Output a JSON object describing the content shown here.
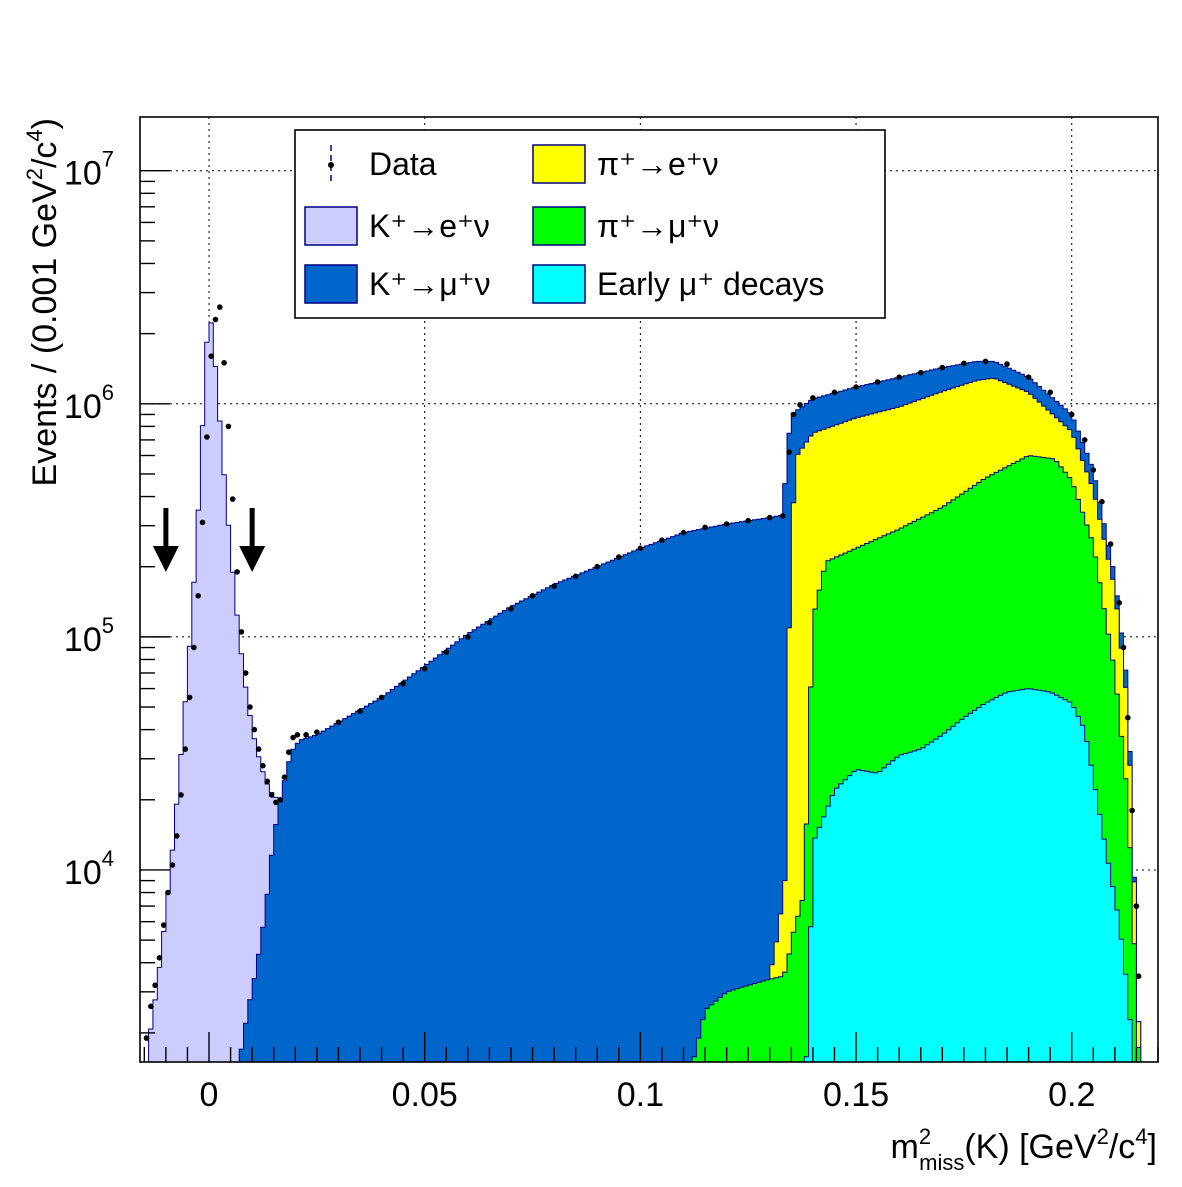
{
  "chart_data": {
    "type": "area",
    "xlabel": {
      "base": "m",
      "sup": "2",
      "sub": "miss",
      "rest": "(K) [GeV",
      "unit_sup": "2",
      "unit_mid": "/c",
      "unit_sup2": "4",
      "unit_end": "]"
    },
    "ylabel": {
      "a": "Events / (0.001 GeV",
      "sup1": "2",
      "b": "/c",
      "sup2": "4",
      "c": ")"
    },
    "xlim": [
      -0.016,
      0.22
    ],
    "ylim": [
      1500,
      17000000
    ],
    "log_y": true,
    "grid": true,
    "legend_position": "top-left",
    "x_ticks": [
      {
        "value": 0,
        "label": "0"
      },
      {
        "value": 0.05,
        "label": "0.05"
      },
      {
        "value": 0.1,
        "label": "0.1"
      },
      {
        "value": 0.15,
        "label": "0.15"
      },
      {
        "value": 0.2,
        "label": "0.2"
      }
    ],
    "y_ticks": [
      {
        "value": 10000,
        "base": "10",
        "exp": "4"
      },
      {
        "value": 100000,
        "base": "10",
        "exp": "5"
      },
      {
        "value": 1000000,
        "base": "10",
        "exp": "6"
      },
      {
        "value": 10000000,
        "base": "10",
        "exp": "7"
      }
    ],
    "arrows": [
      -0.01,
      0.01
    ],
    "legend": [
      {
        "id": "data",
        "label": "Data",
        "kind": "marker"
      },
      {
        "id": "pi_enu",
        "label": "π⁺→e⁺ν",
        "color": "#ffff00"
      },
      {
        "id": "k_enu",
        "label": "K⁺→e⁺ν",
        "color": "#ccccff"
      },
      {
        "id": "pi_munu",
        "label": "π⁺→μ⁺ν",
        "color": "#00ff00"
      },
      {
        "id": "k_munu",
        "label": "K⁺→μ⁺ν",
        "color": "#0066cc"
      },
      {
        "id": "early_mu",
        "label": "Early μ⁺ decays",
        "color": "#00ffff"
      }
    ],
    "series": [
      {
        "id": "k_enu",
        "color": "#ccccff",
        "points": [
          [
            -0.016,
            800
          ],
          [
            -0.014,
            1800
          ],
          [
            -0.012,
            3200
          ],
          [
            -0.01,
            6500
          ],
          [
            -0.008,
            15000
          ],
          [
            -0.006,
            40000
          ],
          [
            -0.004,
            120000
          ],
          [
            -0.002,
            500000
          ],
          [
            -0.001,
            1300000
          ],
          [
            0,
            2600000
          ],
          [
            0.001,
            1900000
          ],
          [
            0.002,
            1100000
          ],
          [
            0.004,
            380000
          ],
          [
            0.006,
            150000
          ],
          [
            0.008,
            70000
          ],
          [
            0.01,
            40000
          ],
          [
            0.012,
            28000
          ],
          [
            0.014,
            22000
          ],
          [
            0.016,
            20000
          ],
          [
            0.018,
            9000
          ],
          [
            0.02,
            1000
          ]
        ]
      },
      {
        "id": "k_munu",
        "color": "#0066cc",
        "points": [
          [
            0.005,
            500
          ],
          [
            0.007,
            1500
          ],
          [
            0.009,
            2500
          ],
          [
            0.011,
            3800
          ],
          [
            0.013,
            6500
          ],
          [
            0.015,
            14000
          ],
          [
            0.017,
            22000
          ],
          [
            0.019,
            32000
          ],
          [
            0.021,
            36000
          ],
          [
            0.025,
            38000
          ],
          [
            0.03,
            43000
          ],
          [
            0.04,
            55000
          ],
          [
            0.05,
            75000
          ],
          [
            0.06,
            103000
          ],
          [
            0.07,
            135000
          ],
          [
            0.08,
            168000
          ],
          [
            0.09,
            200000
          ],
          [
            0.1,
            240000
          ],
          [
            0.11,
            280000
          ],
          [
            0.12,
            305000
          ],
          [
            0.13,
            325000
          ],
          [
            0.133,
            333000
          ],
          [
            0.134,
            620000
          ],
          [
            0.135,
            900000
          ],
          [
            0.14,
            1050000
          ],
          [
            0.15,
            1180000
          ],
          [
            0.16,
            1300000
          ],
          [
            0.17,
            1430000
          ],
          [
            0.178,
            1520000
          ],
          [
            0.182,
            1520000
          ],
          [
            0.19,
            1300000
          ],
          [
            0.2,
            900000
          ],
          [
            0.205,
            520000
          ],
          [
            0.21,
            180000
          ],
          [
            0.213,
            60000
          ],
          [
            0.215,
            5000
          ],
          [
            0.216,
            1000
          ]
        ]
      },
      {
        "id": "pi_enu",
        "color": "#ffff00",
        "points": [
          [
            0.128,
            1000
          ],
          [
            0.13,
            3500
          ],
          [
            0.132,
            5500
          ],
          [
            0.1335,
            9000
          ],
          [
            0.134,
            50000
          ],
          [
            0.135,
            240000
          ],
          [
            0.136,
            590000
          ],
          [
            0.14,
            750000
          ],
          [
            0.15,
            870000
          ],
          [
            0.16,
            970000
          ],
          [
            0.17,
            1130000
          ],
          [
            0.178,
            1260000
          ],
          [
            0.182,
            1290000
          ],
          [
            0.19,
            1120000
          ],
          [
            0.2,
            760000
          ],
          [
            0.205,
            430000
          ],
          [
            0.21,
            160000
          ],
          [
            0.213,
            50000
          ],
          [
            0.215,
            5000
          ],
          [
            0.216,
            1000
          ]
        ]
      },
      {
        "id": "pi_munu",
        "color": "#00ff00",
        "points": [
          [
            0.11,
            1000
          ],
          [
            0.115,
            2500
          ],
          [
            0.12,
            3000
          ],
          [
            0.125,
            3200
          ],
          [
            0.13,
            3400
          ],
          [
            0.133,
            3500
          ],
          [
            0.134,
            3800
          ],
          [
            0.135,
            5000
          ],
          [
            0.138,
            8000
          ],
          [
            0.14,
            120000
          ],
          [
            0.143,
            210000
          ],
          [
            0.15,
            240000
          ],
          [
            0.16,
            290000
          ],
          [
            0.17,
            360000
          ],
          [
            0.18,
            480000
          ],
          [
            0.19,
            600000
          ],
          [
            0.196,
            580000
          ],
          [
            0.2,
            470000
          ],
          [
            0.205,
            250000
          ],
          [
            0.21,
            70000
          ],
          [
            0.213,
            20000
          ],
          [
            0.215,
            3000
          ],
          [
            0.216,
            1000
          ]
        ]
      },
      {
        "id": "early_mu",
        "color": "#00ffff",
        "points": [
          [
            0.138,
            1000
          ],
          [
            0.139,
            2500
          ],
          [
            0.14,
            13000
          ],
          [
            0.145,
            22000
          ],
          [
            0.15,
            27000
          ],
          [
            0.155,
            26000
          ],
          [
            0.16,
            31000
          ],
          [
            0.165,
            33000
          ],
          [
            0.17,
            38000
          ],
          [
            0.175,
            45000
          ],
          [
            0.18,
            52000
          ],
          [
            0.185,
            58000
          ],
          [
            0.19,
            60000
          ],
          [
            0.195,
            58000
          ],
          [
            0.2,
            52000
          ],
          [
            0.203,
            40000
          ],
          [
            0.205,
            25000
          ],
          [
            0.208,
            12000
          ],
          [
            0.211,
            6000
          ],
          [
            0.213,
            3000
          ],
          [
            0.215,
            1000
          ]
        ]
      }
    ],
    "data_points": [
      [
        -0.0145,
        1900
      ],
      [
        -0.0135,
        2600
      ],
      [
        -0.0125,
        3200
      ],
      [
        -0.0115,
        4200
      ],
      [
        -0.0105,
        5800
      ],
      [
        -0.0095,
        8000
      ],
      [
        -0.0085,
        10500
      ],
      [
        -0.0075,
        14000
      ],
      [
        -0.0065,
        21000
      ],
      [
        -0.0055,
        33000
      ],
      [
        -0.0045,
        55000
      ],
      [
        -0.0035,
        90000
      ],
      [
        -0.0025,
        150000
      ],
      [
        -0.0015,
        310000
      ],
      [
        -0.0005,
        720000
      ],
      [
        0.0005,
        1600000
      ],
      [
        0.0015,
        2300000
      ],
      [
        0.0025,
        2600000
      ],
      [
        0.0035,
        1500000
      ],
      [
        0.0045,
        800000
      ],
      [
        0.0055,
        390000
      ],
      [
        0.0065,
        190000
      ],
      [
        0.0075,
        105000
      ],
      [
        0.0085,
        70000
      ],
      [
        0.0095,
        50000
      ],
      [
        0.0105,
        40000
      ],
      [
        0.0115,
        33000
      ],
      [
        0.0125,
        28000
      ],
      [
        0.0135,
        24000
      ],
      [
        0.0145,
        21000
      ],
      [
        0.0155,
        19500
      ],
      [
        0.0165,
        20000
      ],
      [
        0.0175,
        25000
      ],
      [
        0.0185,
        32000
      ],
      [
        0.0195,
        37000
      ],
      [
        0.0205,
        38000
      ],
      [
        0.0225,
        38000
      ],
      [
        0.025,
        39000
      ],
      [
        0.03,
        43000
      ],
      [
        0.035,
        48000
      ],
      [
        0.04,
        55000
      ],
      [
        0.045,
        63000
      ],
      [
        0.05,
        73000
      ],
      [
        0.055,
        86000
      ],
      [
        0.06,
        100000
      ],
      [
        0.065,
        115000
      ],
      [
        0.07,
        132000
      ],
      [
        0.075,
        150000
      ],
      [
        0.08,
        165000
      ],
      [
        0.085,
        182000
      ],
      [
        0.09,
        200000
      ],
      [
        0.095,
        220000
      ],
      [
        0.1,
        240000
      ],
      [
        0.105,
        260000
      ],
      [
        0.11,
        280000
      ],
      [
        0.115,
        295000
      ],
      [
        0.12,
        305000
      ],
      [
        0.125,
        315000
      ],
      [
        0.13,
        325000
      ],
      [
        0.133,
        330000
      ],
      [
        0.1345,
        620000
      ],
      [
        0.1355,
        900000
      ],
      [
        0.137,
        990000
      ],
      [
        0.14,
        1060000
      ],
      [
        0.145,
        1120000
      ],
      [
        0.15,
        1180000
      ],
      [
        0.155,
        1240000
      ],
      [
        0.16,
        1300000
      ],
      [
        0.165,
        1360000
      ],
      [
        0.17,
        1430000
      ],
      [
        0.175,
        1490000
      ],
      [
        0.18,
        1520000
      ],
      [
        0.185,
        1480000
      ],
      [
        0.19,
        1300000
      ],
      [
        0.195,
        1120000
      ],
      [
        0.2,
        900000
      ],
      [
        0.203,
        700000
      ],
      [
        0.205,
        520000
      ],
      [
        0.207,
        380000
      ],
      [
        0.209,
        250000
      ],
      [
        0.211,
        140000
      ],
      [
        0.212,
        90000
      ],
      [
        0.213,
        45000
      ],
      [
        0.214,
        18000
      ],
      [
        0.215,
        7000
      ],
      [
        0.2155,
        3500
      ]
    ]
  }
}
